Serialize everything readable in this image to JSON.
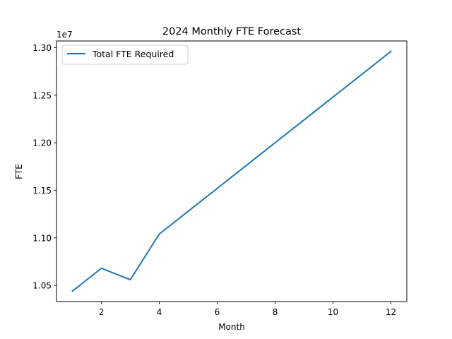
{
  "chart_data": {
    "type": "line",
    "title": "2024 Monthly FTE Forecast",
    "xlabel": "Month",
    "ylabel": "FTE",
    "y_offset_label": "1e7",
    "xlim": [
      0.45,
      12.55
    ],
    "ylim": [
      10330000,
      13070000
    ],
    "x_ticks": [
      2,
      4,
      6,
      8,
      10,
      12
    ],
    "x_tick_labels": [
      "2",
      "4",
      "6",
      "8",
      "10",
      "12"
    ],
    "y_ticks": [
      10500000,
      11000000,
      11500000,
      12000000,
      12500000,
      13000000
    ],
    "y_tick_labels": [
      "1.05",
      "1.10",
      "1.15",
      "1.20",
      "1.25",
      "1.30"
    ],
    "grid": false,
    "legend_position": "upper-left",
    "x": [
      1,
      2,
      3,
      4,
      5,
      6,
      7,
      8,
      9,
      10,
      11,
      12
    ],
    "series": [
      {
        "name": "Total FTE Required",
        "color": "#1f77b4",
        "values": [
          10440000,
          10680000,
          10560000,
          11040000,
          11280000,
          11520000,
          11760000,
          12000000,
          12240000,
          12480000,
          12720000,
          12960000
        ]
      }
    ]
  }
}
